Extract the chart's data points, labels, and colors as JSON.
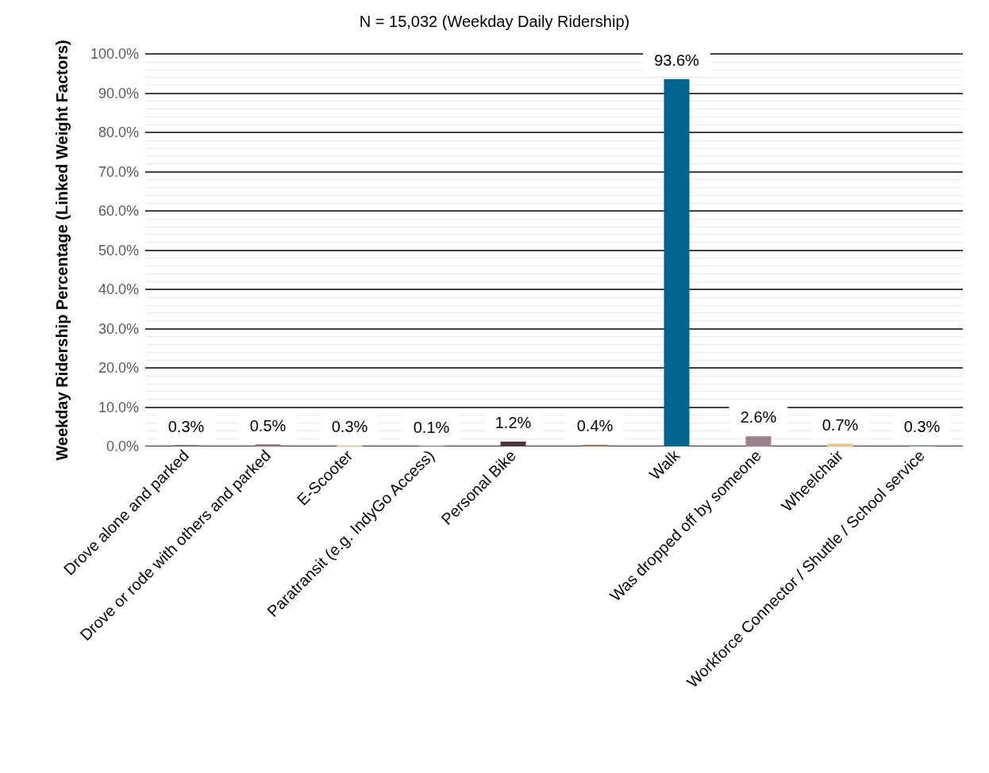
{
  "chart_data": {
    "type": "bar",
    "title": "N = 15,032 (Weekday Daily Ridership)",
    "ylabel": "Weekday Ridership Percentage (Linked Weight Factors)",
    "categories": [
      "Drove alone and parked",
      "Drove or rode with others and parked",
      "E-Scooter",
      "Paratransit (e.g. IndyGo Access)",
      "Personal Bike",
      null,
      "Walk",
      "Was dropped off by someone",
      "Wheelchair",
      "Workforce Connector / Shuttle / School service"
    ],
    "values": [
      0.3,
      0.5,
      0.3,
      0.1,
      1.2,
      0.4,
      93.6,
      2.6,
      0.7,
      0.3
    ],
    "colors": [
      "#5a4a55",
      "#8a6a7a",
      "#e8d4a8",
      "#c8b8c0",
      "#4a3540",
      "#a07850",
      "#006591",
      "#9a7f8e",
      "#e6c98a",
      "#7a8a9a"
    ],
    "value_labels": [
      "0.3%",
      "0.5%",
      "0.3%",
      "0.1%",
      "1.2%",
      "0.4%",
      "93.6%",
      "2.6%",
      "0.7%",
      "0.3%"
    ],
    "ylim": [
      0,
      100
    ],
    "yticks": [
      {
        "value": 0,
        "label": "0.0%"
      },
      {
        "value": 10,
        "label": "10.0%"
      },
      {
        "value": 20,
        "label": "20.0%"
      },
      {
        "value": 30,
        "label": "30.0%"
      },
      {
        "value": 40,
        "label": "40.0%"
      },
      {
        "value": 50,
        "label": "50.0%"
      },
      {
        "value": 60,
        "label": "60.0%"
      },
      {
        "value": 70,
        "label": "70.0%"
      },
      {
        "value": 80,
        "label": "80.0%"
      },
      {
        "value": 90,
        "label": "90.0%"
      },
      {
        "value": 100,
        "label": "100.0%"
      }
    ],
    "grid": "y"
  }
}
